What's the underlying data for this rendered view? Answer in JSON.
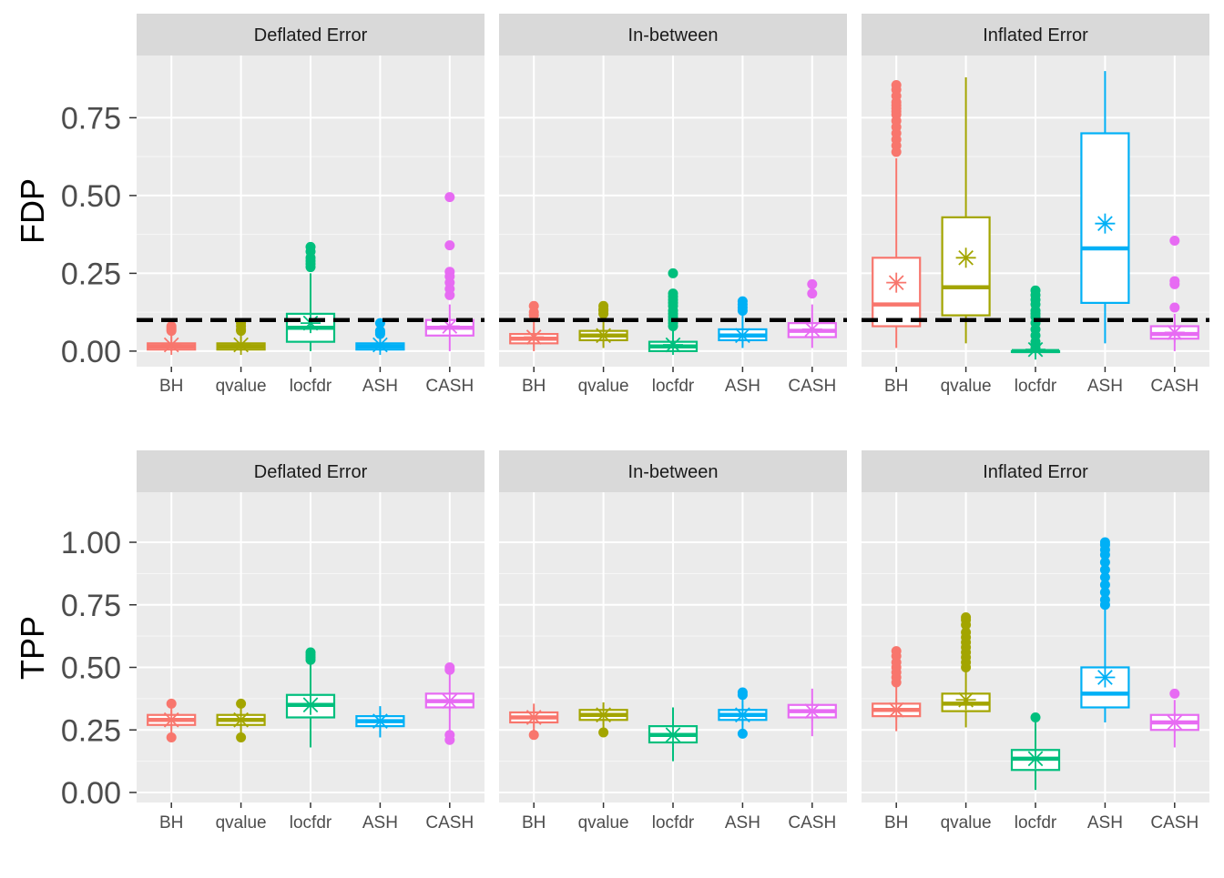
{
  "colors": {
    "BH": "#F8766D",
    "qvalue": "#A3A500",
    "locfdr": "#00BF7D",
    "ASH": "#00B0F6",
    "CASH": "#E76BF3",
    "panel_bg": "#EBEBEB",
    "strip_bg": "#D9D9D9",
    "grid": "#FFFFFF",
    "reference_line": "#000000"
  },
  "chart_data": [
    {
      "type": "boxplot",
      "metric": "FDP",
      "ylabel": "FDP",
      "ylim": [
        -0.05,
        0.95
      ],
      "yticks": [
        "0.00",
        "0.25",
        "0.50",
        "0.75"
      ],
      "ytick_values": [
        0,
        0.25,
        0.5,
        0.75
      ],
      "reference_line": 0.1,
      "reference_line_style": "dashed",
      "categories": [
        "BH",
        "qvalue",
        "locfdr",
        "ASH",
        "CASH"
      ],
      "panels": [
        {
          "label": "Deflated Error",
          "boxes": [
            {
              "method": "BH",
              "q1": 0.005,
              "median": 0.015,
              "q3": 0.025,
              "whisker_low": 0.0,
              "whisker_high": 0.06,
              "mean": 0.02,
              "outliers": [
                0.065,
                0.07,
                0.075,
                0.08
              ]
            },
            {
              "method": "qvalue",
              "q1": 0.005,
              "median": 0.015,
              "q3": 0.025,
              "whisker_low": 0.0,
              "whisker_high": 0.06,
              "mean": 0.02,
              "outliers": [
                0.065,
                0.07,
                0.08,
                0.09
              ]
            },
            {
              "method": "locfdr",
              "q1": 0.03,
              "median": 0.075,
              "q3": 0.12,
              "whisker_low": 0.0,
              "whisker_high": 0.25,
              "mean": 0.09,
              "outliers": [
                0.27,
                0.28,
                0.29,
                0.3,
                0.32,
                0.335
              ]
            },
            {
              "method": "ASH",
              "q1": 0.005,
              "median": 0.015,
              "q3": 0.025,
              "whisker_low": 0.0,
              "whisker_high": 0.05,
              "mean": 0.02,
              "outliers": [
                0.055,
                0.06,
                0.065,
                0.09
              ]
            },
            {
              "method": "CASH",
              "q1": 0.05,
              "median": 0.075,
              "q3": 0.1,
              "whisker_low": 0.0,
              "whisker_high": 0.15,
              "mean": 0.08,
              "outliers": [
                0.18,
                0.2,
                0.22,
                0.24,
                0.255,
                0.34,
                0.495
              ]
            }
          ]
        },
        {
          "label": "In-between",
          "boxes": [
            {
              "method": "BH",
              "q1": 0.025,
              "median": 0.04,
              "q3": 0.055,
              "whisker_low": 0.0,
              "whisker_high": 0.1,
              "mean": 0.045,
              "outliers": [
                0.115,
                0.125,
                0.145
              ]
            },
            {
              "method": "qvalue",
              "q1": 0.035,
              "median": 0.05,
              "q3": 0.065,
              "whisker_low": 0.01,
              "whisker_high": 0.11,
              "mean": 0.05,
              "outliers": [
                0.12,
                0.13,
                0.135,
                0.145
              ]
            },
            {
              "method": "locfdr",
              "q1": 0.0,
              "median": 0.015,
              "q3": 0.03,
              "whisker_low": 0.0,
              "whisker_high": 0.07,
              "mean": 0.02,
              "outliers": [
                0.08,
                0.09,
                0.1,
                0.11,
                0.12,
                0.13,
                0.145,
                0.155,
                0.165,
                0.175,
                0.185,
                0.25
              ]
            },
            {
              "method": "ASH",
              "q1": 0.035,
              "median": 0.05,
              "q3": 0.07,
              "whisker_low": 0.01,
              "whisker_high": 0.12,
              "mean": 0.05,
              "outliers": [
                0.13,
                0.14,
                0.15,
                0.16
              ]
            },
            {
              "method": "CASH",
              "q1": 0.045,
              "median": 0.065,
              "q3": 0.09,
              "whisker_low": 0.01,
              "whisker_high": 0.15,
              "mean": 0.07,
              "outliers": [
                0.185,
                0.215
              ]
            }
          ]
        },
        {
          "label": "Inflated Error",
          "boxes": [
            {
              "method": "BH",
              "q1": 0.08,
              "median": 0.15,
              "q3": 0.3,
              "whisker_low": 0.01,
              "whisker_high": 0.62,
              "mean": 0.22,
              "outliers": [
                0.64,
                0.66,
                0.68,
                0.7,
                0.72,
                0.74,
                0.76,
                0.77,
                0.78,
                0.79,
                0.8,
                0.82,
                0.84,
                0.855
              ]
            },
            {
              "method": "qvalue",
              "q1": 0.115,
              "median": 0.205,
              "q3": 0.43,
              "whisker_low": 0.025,
              "whisker_high": 0.88,
              "mean": 0.3,
              "outliers": []
            },
            {
              "method": "locfdr",
              "q1": 0.0,
              "median": 0.0,
              "q3": 0.0,
              "whisker_low": 0.0,
              "whisker_high": 0.0,
              "mean": 0.005,
              "outliers": [
                0.01,
                0.02,
                0.03,
                0.05,
                0.07,
                0.09,
                0.11,
                0.12,
                0.13,
                0.15,
                0.165,
                0.18,
                0.195
              ]
            },
            {
              "method": "ASH",
              "q1": 0.155,
              "median": 0.33,
              "q3": 0.7,
              "whisker_low": 0.025,
              "whisker_high": 0.9,
              "mean": 0.41,
              "outliers": []
            },
            {
              "method": "CASH",
              "q1": 0.04,
              "median": 0.055,
              "q3": 0.08,
              "whisker_low": 0.0,
              "whisker_high": 0.12,
              "mean": 0.06,
              "outliers": [
                0.14,
                0.215,
                0.225,
                0.355
              ]
            }
          ]
        }
      ]
    },
    {
      "type": "boxplot",
      "metric": "TPP",
      "ylabel": "TPP",
      "ylim": [
        -0.04,
        1.2
      ],
      "yticks": [
        "0.00",
        "0.25",
        "0.50",
        "0.75",
        "1.00"
      ],
      "ytick_values": [
        0,
        0.25,
        0.5,
        0.75,
        1.0
      ],
      "categories": [
        "BH",
        "qvalue",
        "locfdr",
        "ASH",
        "CASH"
      ],
      "panels": [
        {
          "label": "Deflated Error",
          "boxes": [
            {
              "method": "BH",
              "q1": 0.27,
              "median": 0.29,
              "q3": 0.31,
              "whisker_low": 0.235,
              "whisker_high": 0.345,
              "mean": 0.29,
              "outliers": [
                0.22,
                0.355
              ]
            },
            {
              "method": "qvalue",
              "q1": 0.27,
              "median": 0.29,
              "q3": 0.31,
              "whisker_low": 0.235,
              "whisker_high": 0.345,
              "mean": 0.29,
              "outliers": [
                0.22,
                0.355
              ]
            },
            {
              "method": "locfdr",
              "q1": 0.3,
              "median": 0.35,
              "q3": 0.39,
              "whisker_low": 0.18,
              "whisker_high": 0.52,
              "mean": 0.35,
              "outliers": [
                0.53,
                0.54,
                0.55,
                0.56
              ]
            },
            {
              "method": "ASH",
              "q1": 0.265,
              "median": 0.285,
              "q3": 0.305,
              "whisker_low": 0.22,
              "whisker_high": 0.345,
              "mean": 0.285,
              "outliers": []
            },
            {
              "method": "CASH",
              "q1": 0.34,
              "median": 0.365,
              "q3": 0.395,
              "whisker_low": 0.25,
              "whisker_high": 0.48,
              "mean": 0.365,
              "outliers": [
                0.21,
                0.23,
                0.49,
                0.5
              ]
            }
          ]
        },
        {
          "label": "In-between",
          "boxes": [
            {
              "method": "BH",
              "q1": 0.28,
              "median": 0.3,
              "q3": 0.32,
              "whisker_low": 0.245,
              "whisker_high": 0.355,
              "mean": 0.3,
              "outliers": [
                0.23
              ]
            },
            {
              "method": "qvalue",
              "q1": 0.29,
              "median": 0.31,
              "q3": 0.33,
              "whisker_low": 0.255,
              "whisker_high": 0.36,
              "mean": 0.31,
              "outliers": [
                0.24
              ]
            },
            {
              "method": "locfdr",
              "q1": 0.2,
              "median": 0.23,
              "q3": 0.265,
              "whisker_low": 0.125,
              "whisker_high": 0.34,
              "mean": 0.23,
              "outliers": []
            },
            {
              "method": "ASH",
              "q1": 0.29,
              "median": 0.31,
              "q3": 0.33,
              "whisker_low": 0.245,
              "whisker_high": 0.375,
              "mean": 0.31,
              "outliers": [
                0.235,
                0.39,
                0.4
              ]
            },
            {
              "method": "CASH",
              "q1": 0.3,
              "median": 0.325,
              "q3": 0.35,
              "whisker_low": 0.225,
              "whisker_high": 0.415,
              "mean": 0.325,
              "outliers": []
            }
          ]
        },
        {
          "label": "Inflated Error",
          "boxes": [
            {
              "method": "BH",
              "q1": 0.305,
              "median": 0.33,
              "q3": 0.355,
              "whisker_low": 0.245,
              "whisker_high": 0.43,
              "mean": 0.33,
              "outliers": [
                0.44,
                0.46,
                0.48,
                0.5,
                0.52,
                0.545,
                0.565
              ]
            },
            {
              "method": "qvalue",
              "q1": 0.325,
              "median": 0.355,
              "q3": 0.395,
              "whisker_low": 0.26,
              "whisker_high": 0.49,
              "mean": 0.37,
              "outliers": [
                0.5,
                0.52,
                0.54,
                0.56,
                0.58,
                0.6,
                0.62,
                0.64,
                0.67,
                0.69,
                0.7
              ]
            },
            {
              "method": "locfdr",
              "q1": 0.09,
              "median": 0.135,
              "q3": 0.17,
              "whisker_low": 0.01,
              "whisker_high": 0.28,
              "mean": 0.135,
              "outliers": [
                0.3
              ]
            },
            {
              "method": "ASH",
              "q1": 0.34,
              "median": 0.395,
              "q3": 0.5,
              "whisker_low": 0.28,
              "whisker_high": 0.74,
              "mean": 0.46,
              "outliers": [
                0.75,
                0.77,
                0.8,
                0.83,
                0.86,
                0.89,
                0.92,
                0.95,
                0.97,
                0.99,
                1.0
              ]
            },
            {
              "method": "CASH",
              "q1": 0.25,
              "median": 0.28,
              "q3": 0.31,
              "whisker_low": 0.18,
              "whisker_high": 0.37,
              "mean": 0.28,
              "outliers": [
                0.395
              ]
            }
          ]
        }
      ]
    }
  ]
}
